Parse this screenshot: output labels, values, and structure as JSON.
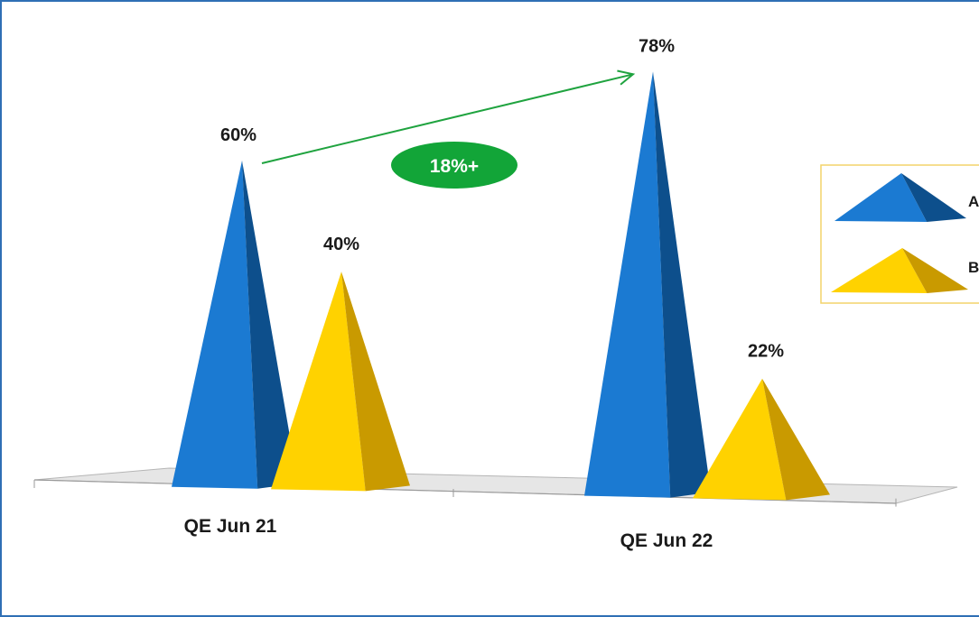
{
  "chart_data": {
    "type": "bar",
    "categories": [
      "QE Jun 21",
      "QE Jun 22"
    ],
    "series": [
      {
        "name": "A",
        "values": [
          60,
          78
        ],
        "labels": [
          "60%",
          "78%"
        ]
      },
      {
        "name": "B",
        "values": [
          40,
          22
        ],
        "labels": [
          "40%",
          "22%"
        ]
      }
    ],
    "ylim": [
      0,
      100
    ],
    "grid": false,
    "legend": "right",
    "annotation": {
      "text": "18%+",
      "from_category": 0,
      "to_category": 1,
      "series": "A"
    }
  },
  "colors": {
    "A": {
      "front": "#1b7ad2",
      "side": "#0d4f8c"
    },
    "B": {
      "front": "#ffd200",
      "side": "#c99a00"
    },
    "badge": "#12a538",
    "arrow": "#1fa33f",
    "floor": "#e6e6e6",
    "legend_border": "#f3d36a",
    "frame_border": "#2f6fb5"
  }
}
